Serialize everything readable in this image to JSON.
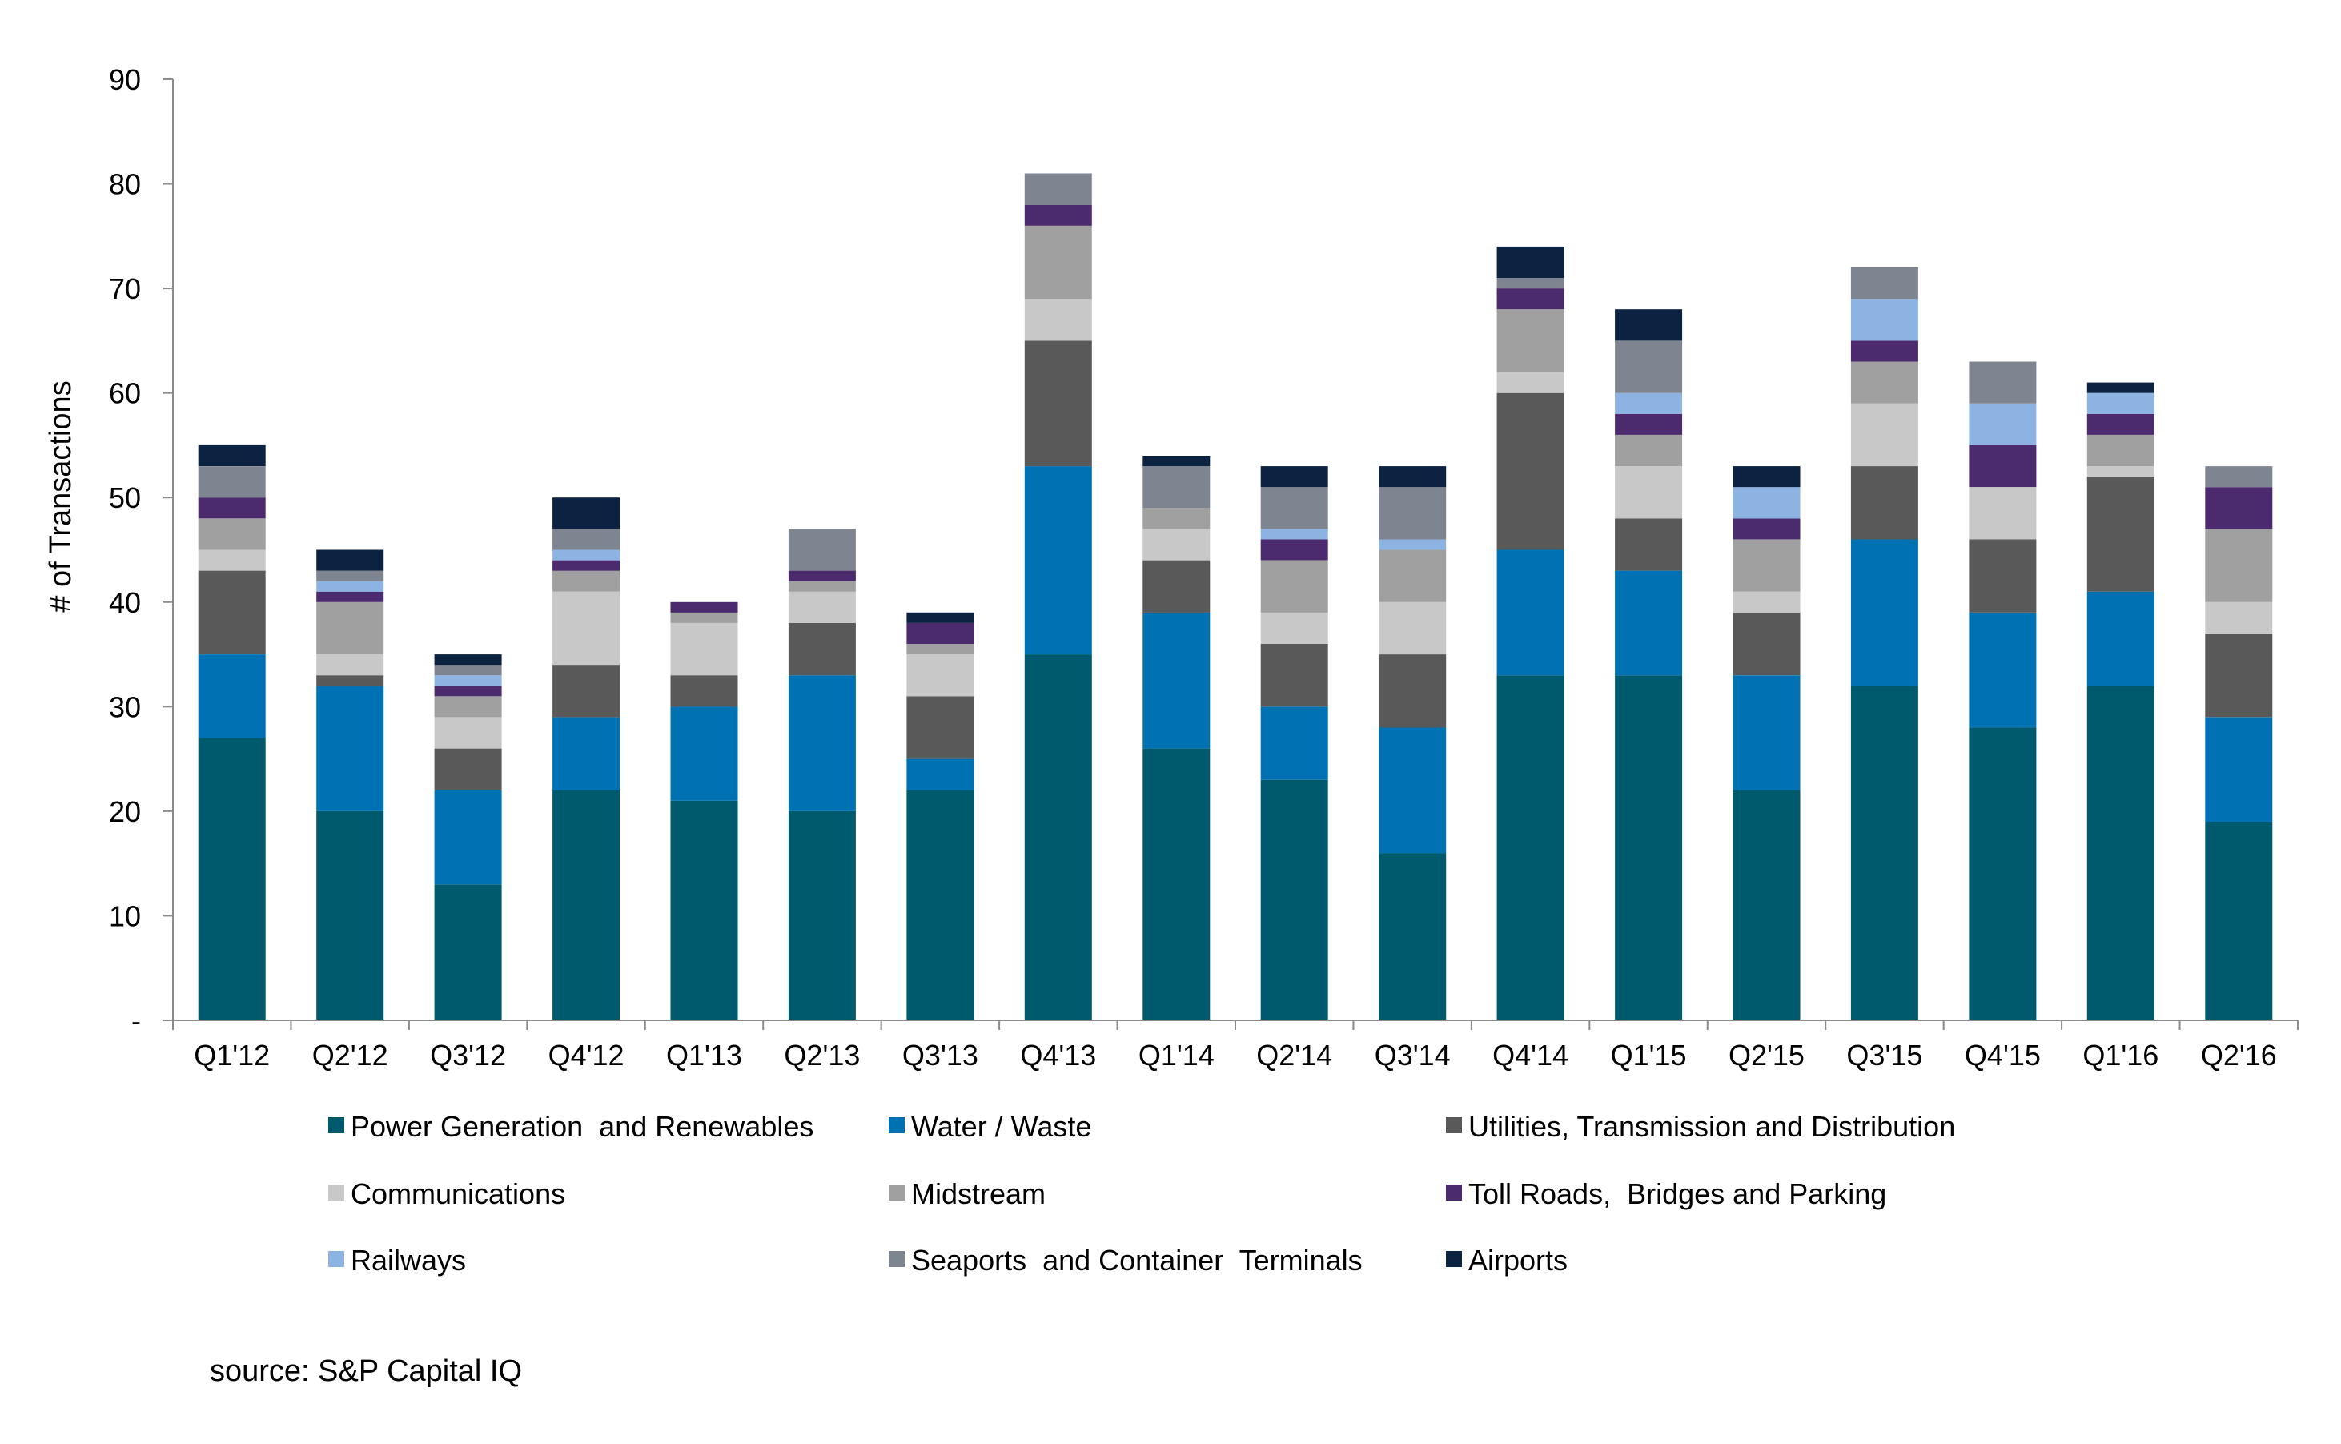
{
  "chart_data": {
    "type": "bar",
    "stacked": true,
    "title": "",
    "xlabel": "",
    "ylabel": "# of Transactions",
    "ylim": [
      0,
      90
    ],
    "y_ticks": [
      "-",
      "10",
      "20",
      "30",
      "40",
      "50",
      "60",
      "70",
      "80",
      "90"
    ],
    "grid": false,
    "legend_position": "bottom",
    "categories": [
      "Q1'12",
      "Q2'12",
      "Q3'12",
      "Q4'12",
      "Q1'13",
      "Q2'13",
      "Q3'13",
      "Q4'13",
      "Q1'14",
      "Q2'14",
      "Q3'14",
      "Q4'14",
      "Q1'15",
      "Q2'15",
      "Q3'15",
      "Q4'15",
      "Q1'16",
      "Q2'16"
    ],
    "series": [
      {
        "name": "Power Generation  and Renewables",
        "color": "#005a6e",
        "values": [
          27,
          20,
          13,
          22,
          21,
          20,
          22,
          35,
          26,
          23,
          16,
          33,
          33,
          22,
          32,
          28,
          32,
          19
        ]
      },
      {
        "name": "Water / Waste",
        "color": "#0072b3",
        "values": [
          8,
          12,
          9,
          7,
          9,
          13,
          3,
          18,
          13,
          7,
          12,
          12,
          10,
          11,
          14,
          11,
          9,
          10
        ]
      },
      {
        "name": "Utilities, Transmission and Distribution",
        "color": "#595959",
        "values": [
          8,
          1,
          4,
          5,
          3,
          5,
          6,
          12,
          5,
          6,
          7,
          15,
          5,
          6,
          7,
          7,
          11,
          8
        ]
      },
      {
        "name": "Communications",
        "color": "#c8c8c8",
        "values": [
          2,
          2,
          3,
          7,
          5,
          3,
          4,
          4,
          3,
          3,
          5,
          2,
          5,
          2,
          6,
          5,
          1,
          3
        ]
      },
      {
        "name": "Midstream",
        "color": "#a0a0a0",
        "values": [
          3,
          5,
          2,
          2,
          1,
          1,
          1,
          7,
          2,
          5,
          5,
          6,
          3,
          5,
          4,
          0,
          3,
          7
        ]
      },
      {
        "name": "Toll Roads,  Bridges and Parking",
        "color": "#4b2a6e",
        "values": [
          2,
          1,
          1,
          1,
          1,
          1,
          2,
          2,
          0,
          2,
          0,
          2,
          2,
          2,
          2,
          4,
          2,
          4
        ]
      },
      {
        "name": "Railways",
        "color": "#8db3e2",
        "values": [
          0,
          1,
          1,
          1,
          0,
          0,
          0,
          0,
          0,
          1,
          1,
          0,
          2,
          3,
          4,
          4,
          2,
          0
        ]
      },
      {
        "name": "Seaports  and Container  Terminals",
        "color": "#7f8590",
        "values": [
          3,
          1,
          1,
          2,
          0,
          4,
          0,
          3,
          4,
          4,
          5,
          1,
          5,
          0,
          3,
          4,
          0,
          2
        ]
      },
      {
        "name": "Airports",
        "color": "#0b2240",
        "values": [
          2,
          2,
          1,
          3,
          0,
          0,
          1,
          0,
          1,
          2,
          2,
          3,
          3,
          2,
          0,
          0,
          1,
          0
        ]
      }
    ]
  },
  "source_note": "source:  S&P Capital IQ"
}
